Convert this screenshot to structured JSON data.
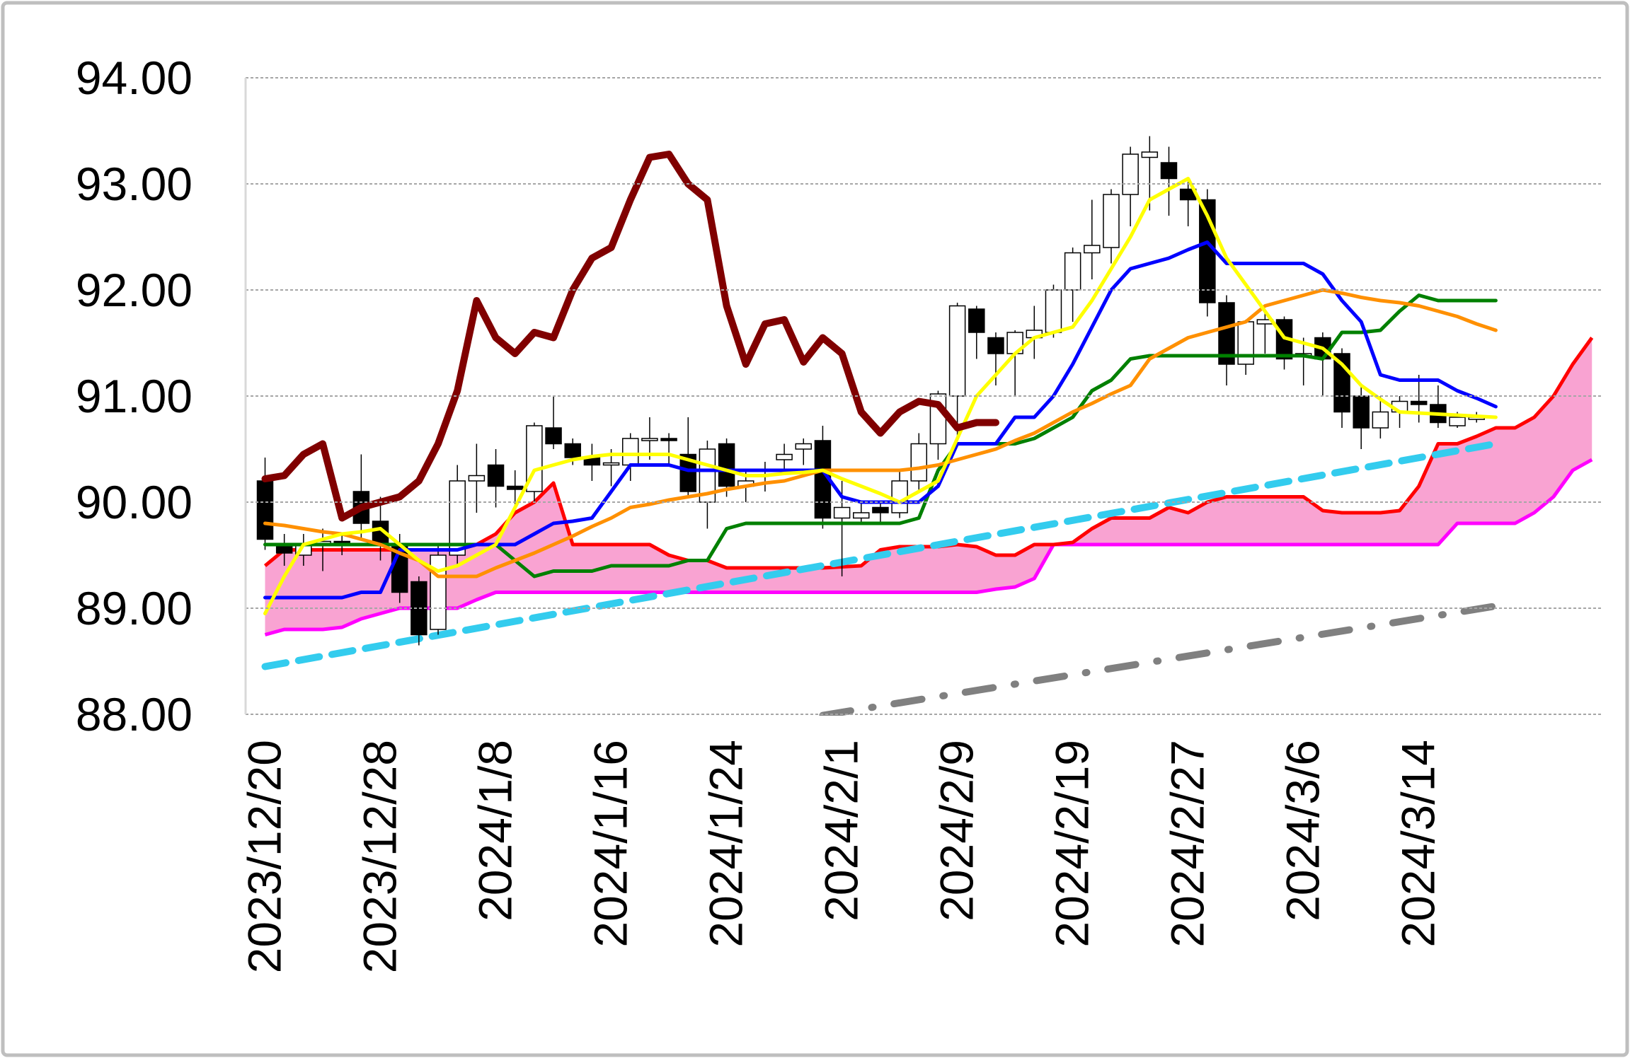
{
  "chart_data": {
    "type": "candlestick",
    "categories": [
      "2023/12/20",
      null,
      null,
      null,
      null,
      null,
      "2023/12/28",
      null,
      null,
      null,
      null,
      null,
      "2024/1/8",
      null,
      null,
      null,
      null,
      null,
      "2024/1/16",
      null,
      null,
      null,
      null,
      null,
      "2024/1/24",
      null,
      null,
      null,
      null,
      null,
      "2024/2/1",
      null,
      null,
      null,
      null,
      null,
      "2024/2/9",
      null,
      null,
      null,
      null,
      null,
      "2024/2/19",
      null,
      null,
      null,
      null,
      null,
      "2024/2/27",
      null,
      null,
      null,
      null,
      null,
      "2024/3/6",
      null,
      null,
      null,
      null,
      null,
      "2024/3/14",
      null,
      null,
      null,
      null,
      null,
      null,
      null,
      null,
      null
    ],
    "open": [
      90.2,
      89.6,
      89.5,
      89.6,
      89.63,
      90.1,
      89.82,
      89.6,
      89.25,
      88.8,
      89.5,
      90.2,
      90.35,
      90.15,
      90.1,
      90.7,
      90.55,
      90.42,
      90.35,
      90.35,
      90.58,
      90.6,
      90.45,
      90.0,
      90.55,
      90.15,
      90.3,
      90.4,
      90.5,
      90.58,
      89.85,
      89.85,
      89.95,
      89.9,
      90.2,
      90.55,
      91.0,
      91.82,
      91.55,
      91.4,
      91.55,
      91.6,
      92.0,
      92.35,
      92.4,
      92.9,
      93.25,
      93.2,
      92.95,
      92.85,
      91.88,
      91.3,
      91.68,
      91.72,
      91.38,
      91.55,
      91.4,
      91.0,
      90.7,
      90.85,
      90.95,
      90.92,
      90.72,
      90.78,
      null,
      null,
      null,
      null,
      null,
      null
    ],
    "high": [
      90.42,
      89.7,
      89.7,
      89.75,
      89.7,
      90.45,
      90.05,
      89.7,
      89.3,
      89.6,
      90.35,
      90.55,
      90.5,
      90.3,
      90.75,
      91.0,
      90.6,
      90.55,
      90.5,
      90.65,
      90.8,
      90.65,
      90.8,
      90.58,
      90.6,
      90.3,
      90.38,
      90.55,
      90.6,
      90.72,
      90.2,
      90.0,
      90.0,
      90.3,
      90.65,
      91.05,
      91.88,
      91.85,
      91.6,
      91.62,
      91.85,
      92.05,
      92.4,
      92.85,
      92.95,
      93.35,
      93.45,
      93.35,
      93.05,
      92.95,
      91.95,
      91.72,
      91.8,
      91.75,
      91.55,
      91.6,
      91.45,
      91.1,
      91.0,
      91.0,
      91.2,
      91.1,
      90.85,
      90.85,
      null,
      null,
      null,
      null,
      null,
      null
    ],
    "low": [
      89.55,
      89.4,
      89.4,
      89.35,
      89.5,
      89.65,
      89.45,
      89.05,
      88.65,
      88.75,
      89.4,
      89.9,
      89.95,
      89.95,
      90.0,
      90.5,
      90.35,
      90.2,
      90.15,
      90.2,
      90.4,
      90.35,
      90.05,
      89.75,
      90.05,
      90.0,
      90.1,
      90.3,
      90.35,
      89.75,
      89.3,
      89.8,
      89.8,
      89.85,
      90.1,
      90.4,
      90.6,
      91.35,
      91.1,
      91.0,
      91.35,
      91.55,
      91.7,
      92.1,
      92.25,
      92.6,
      92.75,
      92.7,
      92.6,
      91.75,
      91.1,
      91.2,
      91.4,
      91.25,
      91.1,
      91.0,
      90.7,
      90.5,
      90.6,
      90.7,
      90.75,
      90.7,
      90.7,
      90.75,
      null,
      null,
      null,
      null,
      null,
      null
    ],
    "close": [
      89.65,
      89.52,
      89.6,
      89.63,
      89.6,
      89.8,
      89.6,
      89.15,
      88.75,
      89.5,
      90.2,
      90.25,
      90.15,
      90.12,
      90.72,
      90.55,
      90.42,
      90.35,
      90.37,
      90.6,
      90.6,
      90.58,
      90.1,
      90.5,
      90.15,
      90.2,
      90.3,
      90.45,
      90.55,
      89.85,
      89.95,
      89.9,
      89.9,
      90.2,
      90.55,
      91.02,
      91.85,
      91.6,
      91.4,
      91.6,
      91.62,
      92.0,
      92.35,
      92.42,
      92.9,
      93.28,
      93.3,
      93.05,
      92.85,
      91.88,
      91.3,
      91.7,
      91.72,
      91.35,
      91.4,
      91.35,
      90.85,
      90.7,
      90.85,
      90.95,
      90.92,
      90.75,
      90.8,
      90.8,
      null,
      null,
      null,
      null,
      null,
      null
    ],
    "cloud": {
      "color": "#f9a3d2",
      "upper": {
        "color": "#ff0000",
        "values": [
          89.4,
          89.55,
          89.55,
          89.55,
          89.55,
          89.55,
          89.55,
          89.55,
          89.55,
          89.55,
          89.55,
          89.6,
          89.7,
          89.9,
          90.0,
          90.18,
          89.6,
          89.6,
          89.6,
          89.6,
          89.6,
          89.5,
          89.45,
          89.45,
          89.38,
          89.38,
          89.38,
          89.38,
          89.38,
          89.38,
          89.39,
          89.4,
          89.55,
          89.58,
          89.58,
          89.58,
          89.6,
          89.58,
          89.5,
          89.5,
          89.6,
          89.6,
          89.62,
          89.75,
          89.85,
          89.85,
          89.85,
          89.95,
          89.9,
          90.0,
          90.05,
          90.05,
          90.05,
          90.05,
          90.05,
          89.92,
          89.9,
          89.9,
          89.9,
          89.92,
          90.15,
          90.55,
          90.55,
          90.62,
          90.7,
          90.7,
          90.8,
          91.0,
          91.3,
          91.55
        ]
      },
      "lower": {
        "color": "#ff00ff",
        "values": [
          88.75,
          88.8,
          88.8,
          88.8,
          88.82,
          88.9,
          88.95,
          89.0,
          89.0,
          89.0,
          89.0,
          89.08,
          89.15,
          89.15,
          89.15,
          89.15,
          89.15,
          89.15,
          89.15,
          89.15,
          89.15,
          89.15,
          89.15,
          89.15,
          89.15,
          89.15,
          89.15,
          89.15,
          89.15,
          89.15,
          89.15,
          89.15,
          89.15,
          89.15,
          89.15,
          89.15,
          89.15,
          89.15,
          89.18,
          89.2,
          89.28,
          89.6,
          89.6,
          89.6,
          89.6,
          89.6,
          89.6,
          89.6,
          89.6,
          89.6,
          89.6,
          89.6,
          89.6,
          89.6,
          89.6,
          89.6,
          89.6,
          89.6,
          89.6,
          89.6,
          89.6,
          89.6,
          89.8,
          89.8,
          89.8,
          89.8,
          89.9,
          90.05,
          90.3,
          90.4
        ]
      }
    },
    "series": [
      {
        "color": "#008000",
        "width": 5,
        "values": [
          89.6,
          89.6,
          89.6,
          89.6,
          89.6,
          89.6,
          89.6,
          89.6,
          89.6,
          89.6,
          89.6,
          89.6,
          89.6,
          89.45,
          89.3,
          89.35,
          89.35,
          89.35,
          89.4,
          89.4,
          89.4,
          89.4,
          89.45,
          89.45,
          89.75,
          89.8,
          89.8,
          89.8,
          89.8,
          89.8,
          89.8,
          89.8,
          89.8,
          89.8,
          89.85,
          90.3,
          90.55,
          90.55,
          90.55,
          90.55,
          90.6,
          90.7,
          90.8,
          91.05,
          91.15,
          91.35,
          91.38,
          91.38,
          91.38,
          91.38,
          91.38,
          91.38,
          91.38,
          91.38,
          91.38,
          91.35,
          91.6,
          91.6,
          91.62,
          91.8,
          91.95,
          91.9,
          91.9,
          91.9,
          91.9,
          null,
          null,
          null,
          null,
          null
        ]
      },
      {
        "color": "#0000ff",
        "width": 5,
        "values": [
          89.1,
          89.1,
          89.1,
          89.1,
          89.1,
          89.15,
          89.15,
          89.55,
          89.55,
          89.55,
          89.55,
          89.6,
          89.6,
          89.6,
          89.7,
          89.8,
          89.82,
          89.85,
          90.1,
          90.35,
          90.35,
          90.35,
          90.3,
          90.3,
          90.3,
          90.3,
          90.3,
          90.3,
          90.3,
          90.3,
          90.05,
          90.0,
          90.0,
          90.0,
          90.0,
          90.15,
          90.55,
          90.55,
          90.55,
          90.8,
          90.8,
          91.0,
          91.3,
          91.65,
          92.0,
          92.2,
          92.25,
          92.3,
          92.38,
          92.45,
          92.25,
          92.25,
          92.25,
          92.25,
          92.25,
          92.15,
          91.9,
          91.7,
          91.2,
          91.15,
          91.15,
          91.15,
          91.05,
          90.98,
          90.9,
          null,
          null,
          null,
          null,
          null
        ]
      },
      {
        "color": "#ff9000",
        "width": 5,
        "values": [
          89.8,
          89.78,
          89.75,
          89.72,
          89.7,
          89.65,
          89.6,
          89.52,
          89.45,
          89.3,
          89.3,
          89.3,
          89.38,
          89.45,
          89.52,
          89.6,
          89.68,
          89.77,
          89.85,
          89.95,
          89.98,
          90.02,
          90.05,
          90.08,
          90.12,
          90.15,
          90.18,
          90.2,
          90.25,
          90.3,
          90.3,
          90.3,
          90.3,
          90.3,
          90.32,
          90.35,
          90.4,
          90.45,
          90.5,
          90.58,
          90.65,
          90.75,
          90.85,
          90.93,
          91.02,
          91.1,
          91.35,
          91.45,
          91.55,
          91.6,
          91.65,
          91.7,
          91.85,
          91.9,
          91.95,
          92.0,
          91.97,
          91.93,
          91.9,
          91.88,
          91.85,
          91.8,
          91.75,
          91.68,
          91.62,
          null,
          null,
          null,
          null,
          null
        ]
      },
      {
        "color": "#ffff00",
        "width": 5,
        "values": [
          88.95,
          89.3,
          89.6,
          89.65,
          89.7,
          89.72,
          89.75,
          89.6,
          89.45,
          89.35,
          89.4,
          89.5,
          89.6,
          89.95,
          90.3,
          90.35,
          90.4,
          90.43,
          90.45,
          90.45,
          90.45,
          90.45,
          90.4,
          90.35,
          90.3,
          90.25,
          90.25,
          90.27,
          90.28,
          90.3,
          90.22,
          90.15,
          90.08,
          90.0,
          90.1,
          90.2,
          90.6,
          91.0,
          91.2,
          91.4,
          91.55,
          91.6,
          91.65,
          91.9,
          92.2,
          92.5,
          92.85,
          92.95,
          93.05,
          92.7,
          92.3,
          92.05,
          91.8,
          91.55,
          91.5,
          91.45,
          91.3,
          91.1,
          90.97,
          90.85,
          90.84,
          90.83,
          90.82,
          90.81,
          90.8,
          null,
          null,
          null,
          null,
          null
        ]
      },
      {
        "color": "#800000",
        "width": 10,
        "values": [
          90.22,
          90.25,
          90.45,
          90.55,
          89.85,
          89.95,
          90.0,
          90.05,
          90.2,
          90.55,
          91.05,
          91.9,
          91.55,
          91.4,
          91.6,
          91.55,
          92.0,
          92.3,
          92.4,
          92.85,
          93.25,
          93.28,
          93.0,
          92.85,
          91.85,
          91.3,
          91.68,
          91.72,
          91.32,
          91.55,
          91.4,
          90.85,
          90.65,
          90.85,
          90.95,
          90.92,
          90.7,
          90.75,
          90.75,
          null,
          null,
          null,
          null,
          null,
          null,
          null,
          null,
          null,
          null,
          null,
          null,
          null,
          null,
          null,
          null,
          null,
          null,
          null,
          null,
          null,
          null,
          null,
          null,
          null,
          null,
          null,
          null,
          null,
          null,
          null
        ]
      }
    ],
    "trendlines": [
      {
        "color": "#33ccee",
        "style": "dash",
        "x": [
          0,
          64
        ],
        "values": [
          88.45,
          90.55
        ]
      },
      {
        "color": "#808080",
        "style": "dashdot",
        "x": [
          29,
          64
        ],
        "values": [
          87.99,
          89.02
        ]
      }
    ],
    "ylim": [
      88,
      94
    ],
    "yticks": [
      {
        "value": 88,
        "label": "88.00"
      },
      {
        "value": 89,
        "label": "89.00"
      },
      {
        "value": 90,
        "label": "90.00"
      },
      {
        "value": 91,
        "label": "91.00"
      },
      {
        "value": 92,
        "label": "92.00"
      },
      {
        "value": 93,
        "label": "93.00"
      },
      {
        "value": 94,
        "label": "94.00"
      }
    ],
    "grid": true
  }
}
